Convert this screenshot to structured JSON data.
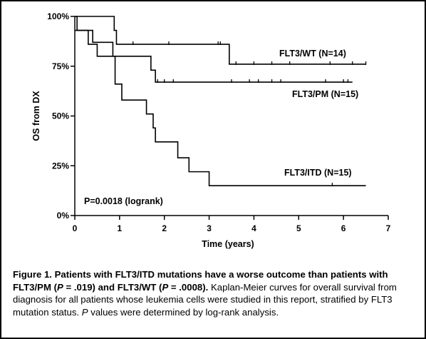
{
  "chart_data": {
    "type": "line",
    "subtype": "kaplan-meier",
    "xlabel": "Time (years)",
    "ylabel": "OS from DX",
    "xlim": [
      0,
      7
    ],
    "ylim": [
      0,
      100
    ],
    "xticks": [
      "0",
      "1",
      "2",
      "3",
      "4",
      "5",
      "6",
      "7"
    ],
    "yticks": [
      "0%",
      "25%",
      "50%",
      "75%",
      "100%"
    ],
    "annotation": "P=0.0018 (logrank)",
    "grid": false,
    "series": [
      {
        "name": "FLT3/WT (N=14)",
        "steps": [
          [
            0,
            100
          ],
          [
            0.88,
            93
          ],
          [
            0.93,
            86
          ],
          [
            3.45,
            76
          ],
          [
            6.5,
            76
          ]
        ],
        "censor": [
          1.3,
          2.1,
          3.2,
          3.25,
          3.6,
          4.0,
          4.4,
          4.8,
          5.7,
          6.2,
          6.5
        ]
      },
      {
        "name": "FLT3/PM (N=15)",
        "steps": [
          [
            0,
            100
          ],
          [
            0.05,
            93
          ],
          [
            0.4,
            87
          ],
          [
            0.85,
            80
          ],
          [
            1.7,
            73
          ],
          [
            1.8,
            67
          ],
          [
            6.2,
            67
          ]
        ],
        "censor": [
          1.85,
          2.0,
          2.2,
          3.5,
          3.9,
          4.1,
          4.4,
          4.6,
          5.6,
          6.0,
          6.1
        ]
      },
      {
        "name": "FLT3/ITD (N=15)",
        "steps": [
          [
            0,
            93
          ],
          [
            0.3,
            86
          ],
          [
            0.5,
            80
          ],
          [
            0.9,
            66
          ],
          [
            1.05,
            58
          ],
          [
            1.6,
            51
          ],
          [
            1.75,
            44
          ],
          [
            1.8,
            37
          ],
          [
            2.3,
            29
          ],
          [
            2.55,
            22
          ],
          [
            3.0,
            15
          ],
          [
            6.5,
            15
          ]
        ],
        "censor": [
          5.75
        ]
      }
    ]
  },
  "caption": {
    "lead": "Figure 1. Patients with FLT3/ITD mutations have a worse outcome than patients with FLT3/PM (",
    "p1_label": "P",
    "p1_value": " = .019) and FLT3/WT (",
    "p2_label": "P",
    "p2_value": " = .0008).",
    "body": " Kaplan-Meier curves for overall survival from diagnosis for all patients whose leukemia cells were studied in this report, stratified by FLT3 mutation status. ",
    "p3_label": "P",
    "tail": " values were determined by log-rank analysis."
  }
}
